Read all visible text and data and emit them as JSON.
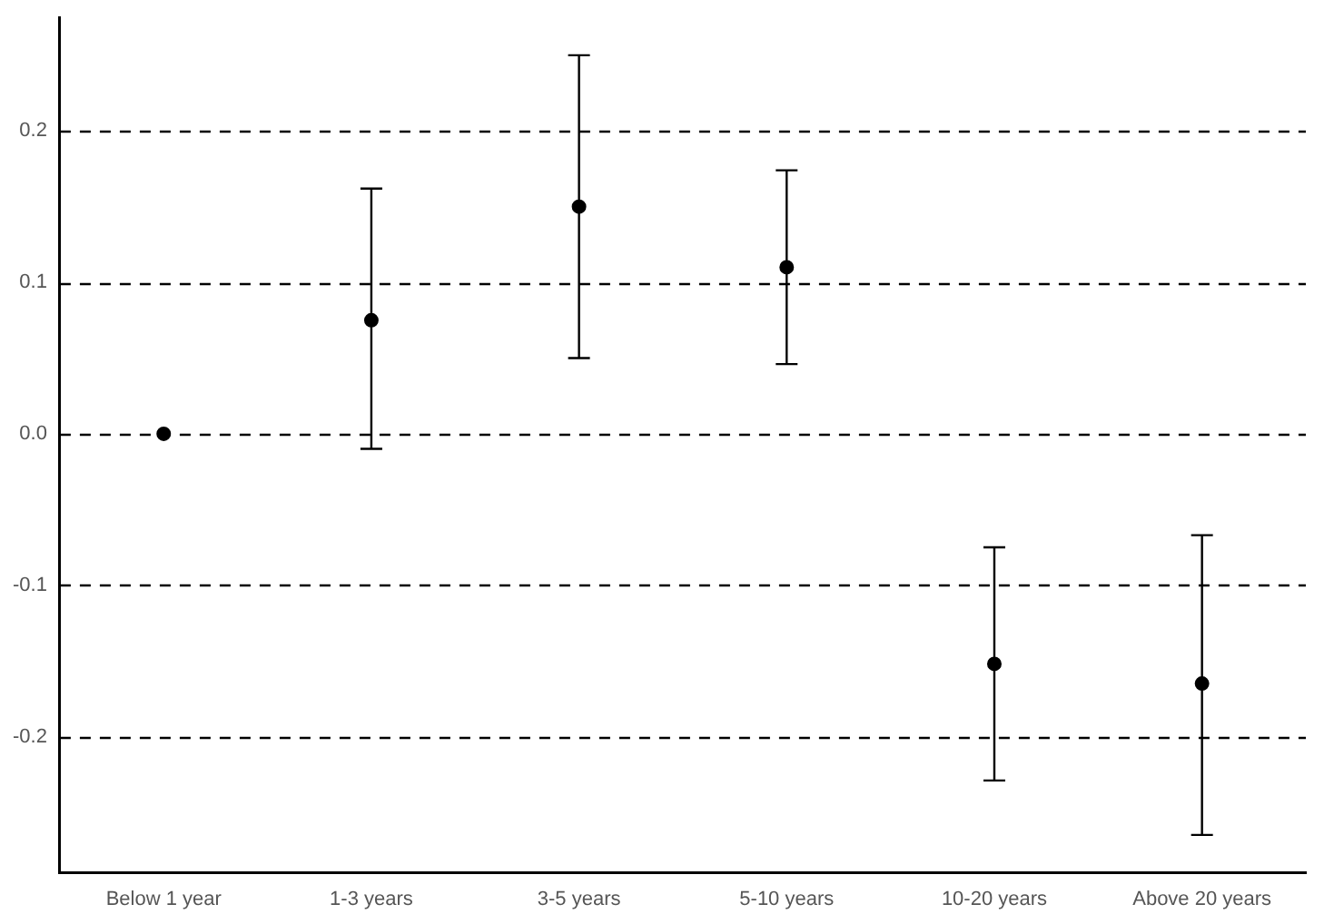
{
  "chart_data": {
    "type": "scatter",
    "categories": [
      "Below 1 year",
      "1-3 years",
      "3-5 years",
      "5-10 years",
      "10-20 years",
      "Above 20 years"
    ],
    "series": [
      {
        "color": "#000000",
        "values": [
          0,
          0.075,
          0.15,
          0.11,
          -0.152,
          -0.165
        ],
        "errors": [
          null,
          [
            -0.01,
            0.162
          ],
          [
            0.05,
            0.25
          ],
          [
            0.046,
            0.174
          ],
          [
            -0.229,
            -0.075
          ],
          [
            -0.265,
            -0.067
          ]
        ]
      }
    ],
    "ylim": [
      -0.29,
      0.275
    ],
    "yticks": [
      -0.2,
      -0.1,
      {
        "value": 0,
        "label": "0.0"
      },
      0.1,
      0.2
    ],
    "grid": "y",
    "line_style": "dashed",
    "marker": "circle",
    "legend": false
  }
}
